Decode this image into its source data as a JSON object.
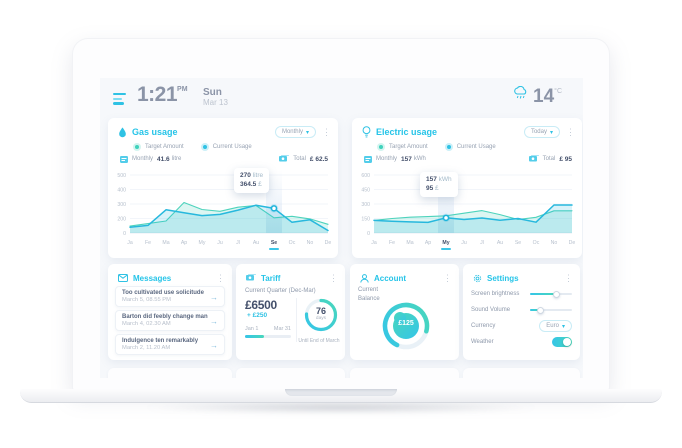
{
  "icons": {
    "caret": "▾",
    "kebab": "⋮",
    "arrow": "→"
  },
  "colors": {
    "accent_cyan": "#2fc2e4",
    "accent_teal": "#3fd2bb",
    "text_dark": "#44506b",
    "text_gray": "#98a3b3"
  },
  "header": {
    "time": "1:21",
    "meridiem": "PM",
    "day": "Sun",
    "date": "Mar 13",
    "temperature": "14",
    "temp_unit": "°C"
  },
  "gas_card": {
    "title": "Gas usage",
    "period": "Monthly",
    "legend": [
      {
        "label": "Target Amount"
      },
      {
        "label": "Current Usage"
      }
    ],
    "meta_label": "Monthly",
    "meta_value": "41.6",
    "meta_unit": "litre",
    "total_label": "Total",
    "total_value": "£ 62.5"
  },
  "electric_card": {
    "title": "Electric usage",
    "period": "Today",
    "legend": [
      {
        "label": "Target Amount"
      },
      {
        "label": "Current Usage"
      }
    ],
    "meta_label": "Monthly",
    "meta_value": "157",
    "meta_unit": "kWh",
    "total_label": "Total",
    "total_value": "£ 95"
  },
  "chart_data": [
    {
      "type": "area",
      "title": "Gas usage",
      "unit": "litre",
      "x": [
        "Ja",
        "Fe",
        "Ma",
        "Ap",
        "My",
        "Ju",
        "Jl",
        "Au",
        "Se",
        "Oc",
        "No",
        "De"
      ],
      "selected_index": 8,
      "ytick_values": [
        0,
        200,
        300,
        400,
        500
      ],
      "ytick_labels": [
        "0",
        "200",
        "300",
        "400",
        "500"
      ],
      "ylim": [
        0,
        500
      ],
      "grid": true,
      "legend_position": "top",
      "series": [
        {
          "name": "Target Amount",
          "color": "#4ed3bc",
          "fill": "rgba(78,211,188,0.20)",
          "values": [
            95,
            130,
            165,
            310,
            262,
            250,
            278,
            290,
            205,
            215,
            195,
            120
          ]
        },
        {
          "name": "Current Usage",
          "color": "#27b8dd",
          "fill": "rgba(39,184,221,0.18)",
          "values": [
            80,
            105,
            260,
            240,
            220,
            228,
            258,
            292,
            270,
            148,
            182,
            35
          ]
        }
      ],
      "marker": {
        "series": "Current Usage",
        "index": 8,
        "value": "270",
        "unit": "litre",
        "price": "364.5",
        "currency": "£"
      }
    },
    {
      "type": "area",
      "title": "Electric usage",
      "unit": "kWh",
      "x": [
        "Ja",
        "Fe",
        "Ma",
        "Ap",
        "My",
        "Ju",
        "Jl",
        "Au",
        "Se",
        "Oc",
        "No",
        "De"
      ],
      "selected_index": 4,
      "ytick_values": [
        0,
        150,
        300,
        450,
        600
      ],
      "ytick_labels": [
        "0",
        "150",
        "300",
        "450",
        "600"
      ],
      "ylim": [
        0,
        600
      ],
      "grid": true,
      "legend_position": "top",
      "series": [
        {
          "name": "Target Amount",
          "color": "#4ed3bc",
          "fill": "rgba(78,211,188,0.20)",
          "values": [
            130,
            150,
            163,
            170,
            178,
            205,
            232,
            190,
            140,
            162,
            230,
            230
          ]
        },
        {
          "name": "Current Usage",
          "color": "#27b8dd",
          "fill": "rgba(39,184,221,0.18)",
          "values": [
            130,
            122,
            115,
            110,
            157,
            140,
            155,
            132,
            150,
            112,
            290,
            290
          ]
        }
      ],
      "marker": {
        "series": "Current Usage",
        "index": 4,
        "value": "157",
        "unit": "kWh",
        "price": "95",
        "currency": "£"
      }
    }
  ],
  "messages": {
    "title": "Messages",
    "items": [
      {
        "title": "Too cultivated use solicitude",
        "time": "March 5, 08.55 PM"
      },
      {
        "title": "Barton did feebly change man",
        "time": "March 4, 02.30 AM"
      },
      {
        "title": "Indulgence ten remarkably",
        "time": "March 2, 11.20 AM"
      }
    ]
  },
  "tariff": {
    "title": "Tariff",
    "subtitle": "Current Quarter (Dec-Mar)",
    "amount": "£6500",
    "delta": "+ £250",
    "range_start": "Jan 1",
    "range_end": "Mar 31",
    "progress_pct": 42,
    "days": "76",
    "days_label": "days",
    "ring_pct": 76,
    "caption": "Until End of March"
  },
  "account": {
    "title": "Account",
    "balance_label_1": "Current",
    "balance_label_2": "Balance",
    "balance": "£125",
    "gauge_pct": 72
  },
  "settings": {
    "title": "Settings",
    "brightness_label": "Screen brightness",
    "brightness_pct": 62,
    "volume_label": "Sound Volume",
    "volume_pct": 24,
    "currency_label": "Currency",
    "currency_value": "Euro",
    "weather_label": "Weather",
    "weather_on": true
  }
}
